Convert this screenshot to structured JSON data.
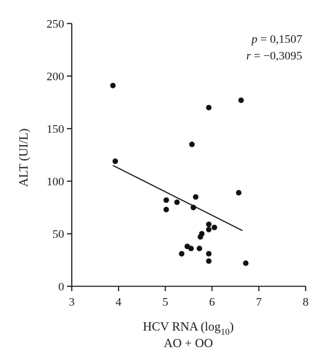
{
  "chart_data": {
    "type": "scatter",
    "xlabel": "HCV RNA (log",
    "xlabel_sub": "10",
    "xlabel_close": ")",
    "xlabel_line2": "AO + OO",
    "ylabel": "ALT (UI/L)",
    "xlim": [
      3,
      8
    ],
    "ylim": [
      0,
      250
    ],
    "xticks": [
      3,
      4,
      5,
      6,
      7,
      8
    ],
    "yticks": [
      0,
      50,
      100,
      150,
      200,
      250
    ],
    "points": [
      {
        "x": 3.88,
        "y": 191
      },
      {
        "x": 3.93,
        "y": 119
      },
      {
        "x": 5.02,
        "y": 82
      },
      {
        "x": 5.02,
        "y": 73
      },
      {
        "x": 5.25,
        "y": 80
      },
      {
        "x": 5.35,
        "y": 31
      },
      {
        "x": 5.47,
        "y": 38
      },
      {
        "x": 5.55,
        "y": 36
      },
      {
        "x": 5.57,
        "y": 135
      },
      {
        "x": 5.6,
        "y": 75
      },
      {
        "x": 5.65,
        "y": 85
      },
      {
        "x": 5.73,
        "y": 36
      },
      {
        "x": 5.75,
        "y": 47
      },
      {
        "x": 5.78,
        "y": 50
      },
      {
        "x": 5.93,
        "y": 170
      },
      {
        "x": 5.93,
        "y": 59
      },
      {
        "x": 5.93,
        "y": 54
      },
      {
        "x": 5.93,
        "y": 31
      },
      {
        "x": 5.93,
        "y": 24
      },
      {
        "x": 6.05,
        "y": 56
      },
      {
        "x": 6.57,
        "y": 89
      },
      {
        "x": 6.62,
        "y": 177
      },
      {
        "x": 6.72,
        "y": 22
      }
    ],
    "trendline": {
      "x": [
        3.88,
        6.65
      ],
      "y": [
        115,
        53
      ]
    },
    "annotations": {
      "p_symbol": "p",
      "p_value": " = 0,1507",
      "r_symbol": "r",
      "r_value": " = −0,3095"
    },
    "grid": false,
    "legend": "none"
  }
}
